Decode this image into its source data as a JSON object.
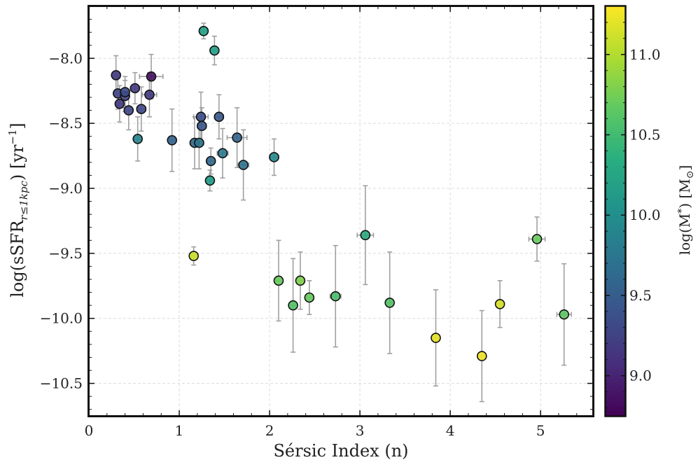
{
  "chart_data": {
    "type": "scatter",
    "title": "",
    "xlabel": "Sérsic Index (n)",
    "ylabel_main": "log(sSFR",
    "ylabel_sub": "r≤1kpc",
    "ylabel_unit": ") [yr",
    "ylabel_sup": "−1",
    "ylabel_close": "]",
    "xlim": [
      0,
      5.58
    ],
    "ylim": [
      -10.75,
      -7.6
    ],
    "xticks": [
      0,
      1,
      2,
      3,
      4,
      5
    ],
    "xtick_labels": [
      "0",
      "1",
      "2",
      "3",
      "4",
      "5"
    ],
    "yticks": [
      -8.0,
      -8.5,
      -9.0,
      -9.5,
      -10.0,
      -10.5
    ],
    "ytick_labels": [
      "−8.0",
      "−8.5",
      "−9.0",
      "−9.5",
      "−10.0",
      "−10.5"
    ],
    "grid": true,
    "colorbar": {
      "label": "log(M",
      "label_sub": "*",
      "label_unit": ") [M",
      "label_unit_sub": "⊙",
      "label_close": "]",
      "colormap": "viridis",
      "range": [
        8.75,
        11.3
      ],
      "ticks": [
        9.0,
        9.5,
        10.0,
        10.5,
        11.0
      ],
      "tick_labels": [
        "9.0",
        "9.5",
        "10.0",
        "10.5",
        "11.0"
      ]
    },
    "points": [
      {
        "n": 0.3,
        "ssfr": -8.13,
        "yerr": 0.15,
        "xerr": 0.03,
        "logm": 9.2
      },
      {
        "n": 0.32,
        "ssfr": -8.27,
        "yerr": 0.12,
        "xerr": 0.03,
        "logm": 9.3
      },
      {
        "n": 0.34,
        "ssfr": -8.35,
        "yerr": 0.14,
        "xerr": 0.03,
        "logm": 9.2
      },
      {
        "n": 0.4,
        "ssfr": -8.29,
        "yerr": 0.12,
        "xerr": 0.04,
        "logm": 9.25
      },
      {
        "n": 0.4,
        "ssfr": -8.26,
        "yerr": 0.12,
        "xerr": 0.04,
        "logm": 9.35
      },
      {
        "n": 0.44,
        "ssfr": -8.4,
        "yerr": 0.15,
        "xerr": 0.04,
        "logm": 9.3
      },
      {
        "n": 0.51,
        "ssfr": -8.23,
        "yerr": 0.12,
        "xerr": 0.05,
        "logm": 9.2
      },
      {
        "n": 0.54,
        "ssfr": -8.62,
        "yerr": 0.17,
        "xerr": 0.04,
        "logm": 9.9
      },
      {
        "n": 0.58,
        "ssfr": -8.39,
        "yerr": 0.17,
        "xerr": 0.05,
        "logm": 9.3
      },
      {
        "n": 0.67,
        "ssfr": -8.28,
        "yerr": 0.17,
        "xerr": 0.08,
        "logm": 9.2
      },
      {
        "n": 0.69,
        "ssfr": -8.14,
        "yerr": 0.17,
        "xerr": 0.13,
        "logm": 8.85
      },
      {
        "n": 0.92,
        "ssfr": -8.63,
        "yerr": 0.24,
        "xerr": 0.03,
        "logm": 9.55
      },
      {
        "n": 1.16,
        "ssfr": -9.52,
        "yerr": 0.07,
        "xerr": 0.03,
        "logm": 11.1
      },
      {
        "n": 1.17,
        "ssfr": -8.65,
        "yerr": 0.2,
        "xerr": 0.05,
        "logm": 9.6
      },
      {
        "n": 1.22,
        "ssfr": -8.65,
        "yerr": 0.2,
        "xerr": 0.05,
        "logm": 9.75
      },
      {
        "n": 1.24,
        "ssfr": -8.45,
        "yerr": 0.19,
        "xerr": 0.08,
        "logm": 9.35
      },
      {
        "n": 1.25,
        "ssfr": -8.52,
        "yerr": 0.14,
        "xerr": 0.05,
        "logm": 9.45
      },
      {
        "n": 1.27,
        "ssfr": -7.79,
        "yerr": 0.06,
        "xerr": 0.03,
        "logm": 10.2
      },
      {
        "n": 1.34,
        "ssfr": -8.94,
        "yerr": 0.08,
        "xerr": 0.03,
        "logm": 10.15
      },
      {
        "n": 1.35,
        "ssfr": -8.79,
        "yerr": 0.1,
        "xerr": 0.04,
        "logm": 9.6
      },
      {
        "n": 1.39,
        "ssfr": -7.94,
        "yerr": 0.11,
        "xerr": 0.03,
        "logm": 10.2
      },
      {
        "n": 1.44,
        "ssfr": -8.45,
        "yerr": 0.17,
        "xerr": 0.05,
        "logm": 9.45
      },
      {
        "n": 1.48,
        "ssfr": -8.73,
        "yerr": 0.19,
        "xerr": 0.06,
        "logm": 9.8
      },
      {
        "n": 1.64,
        "ssfr": -8.61,
        "yerr": 0.23,
        "xerr": 0.11,
        "logm": 9.55
      },
      {
        "n": 1.71,
        "ssfr": -8.82,
        "yerr": 0.27,
        "xerr": 0.06,
        "logm": 9.7
      },
      {
        "n": 2.05,
        "ssfr": -8.76,
        "yerr": 0.14,
        "xerr": 0.05,
        "logm": 9.95
      },
      {
        "n": 2.1,
        "ssfr": -9.71,
        "yerr": 0.31,
        "xerr": 0.03,
        "logm": 10.7
      },
      {
        "n": 2.26,
        "ssfr": -9.9,
        "yerr": 0.36,
        "xerr": 0.03,
        "logm": 10.6
      },
      {
        "n": 2.34,
        "ssfr": -9.71,
        "yerr": 0.22,
        "xerr": 0.03,
        "logm": 10.8
      },
      {
        "n": 2.44,
        "ssfr": -9.84,
        "yerr": 0.13,
        "xerr": 0.03,
        "logm": 10.7
      },
      {
        "n": 2.73,
        "ssfr": -9.83,
        "yerr": 0.39,
        "xerr": 0.06,
        "logm": 10.55
      },
      {
        "n": 3.06,
        "ssfr": -9.36,
        "yerr": 0.38,
        "xerr": 0.09,
        "logm": 10.3
      },
      {
        "n": 3.33,
        "ssfr": -9.88,
        "yerr": 0.39,
        "xerr": 0.03,
        "logm": 10.6
      },
      {
        "n": 3.84,
        "ssfr": -10.15,
        "yerr": 0.37,
        "xerr": 0.03,
        "logm": 11.2
      },
      {
        "n": 4.35,
        "ssfr": -10.29,
        "yerr": 0.35,
        "xerr": 0.03,
        "logm": 11.25
      },
      {
        "n": 4.55,
        "ssfr": -9.89,
        "yerr": 0.18,
        "xerr": 0.03,
        "logm": 11.15
      },
      {
        "n": 4.96,
        "ssfr": -9.39,
        "yerr": 0.17,
        "xerr": 0.09,
        "logm": 10.7
      },
      {
        "n": 5.26,
        "ssfr": -9.97,
        "yerr": 0.39,
        "xerr": 0.08,
        "logm": 10.65
      }
    ]
  }
}
